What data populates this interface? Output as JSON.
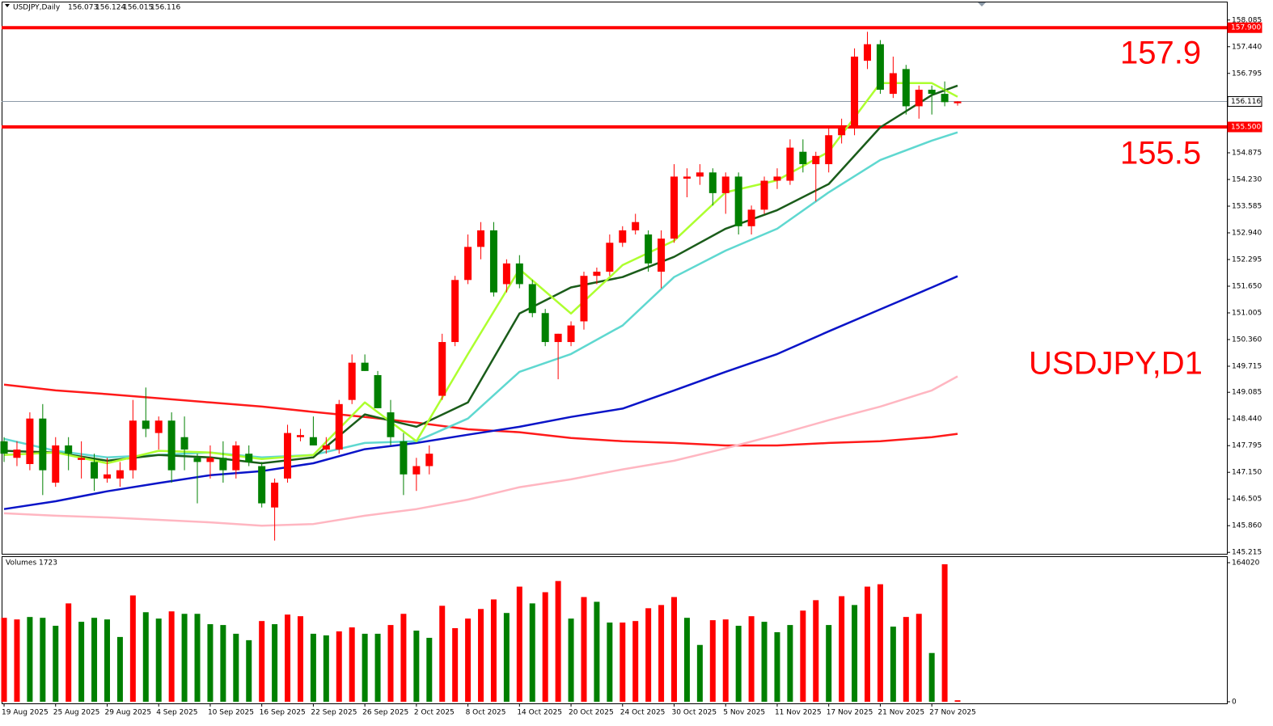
{
  "chart_data": {
    "type": "candlestick",
    "title": "USDJPY,Daily",
    "ohlc_header": [
      156.073,
      156.124,
      156.015,
      156.116
    ],
    "categories": [
      "19 Aug 2025",
      null,
      null,
      null,
      "25 Aug 2025",
      null,
      null,
      null,
      "29 Aug 2025",
      null,
      null,
      null,
      "4 Sep 2025",
      null,
      null,
      null,
      "10 Sep 2025",
      null,
      null,
      null,
      "16 Sep 2025",
      null,
      null,
      null,
      "22 Sep 2025",
      null,
      null,
      null,
      "26 Sep 2025",
      null,
      null,
      null,
      "2 Oct 2025",
      null,
      null,
      null,
      "8 Oct 2025",
      null,
      null,
      null,
      "14 Oct 2025",
      null,
      null,
      null,
      "20 Oct 2025",
      null,
      null,
      null,
      "24 Oct 2025",
      null,
      null,
      null,
      "30 Oct 2025",
      null,
      null,
      null,
      "5 Nov 2025",
      null,
      null,
      null,
      "11 Nov 2025",
      null,
      null,
      null,
      "17 Nov 2025",
      null,
      null,
      null,
      "21 Nov 2025",
      null,
      null,
      null,
      "27 Nov 2025",
      null,
      null
    ],
    "xlim": [
      -0.19,
      94.9
    ],
    "open": [
      147.9,
      147.5,
      147.35,
      148.45,
      146.9,
      147.8,
      147.45,
      147.4,
      147.0,
      147.0,
      147.2,
      148.4,
      148.1,
      148.4,
      148.0,
      147.5,
      147.4,
      147.5,
      147.2,
      147.6,
      147.3,
      146.3,
      147.0,
      148.0,
      148.0,
      147.7,
      147.7,
      148.9,
      149.8,
      149.5,
      148.6,
      147.9,
      147.1,
      147.3,
      149.0,
      150.3,
      151.8,
      152.6,
      153.0,
      151.7,
      152.2,
      151.7,
      151.0,
      150.3,
      150.3,
      150.8,
      151.9,
      152.0,
      152.7,
      153.0,
      152.9,
      152.0,
      152.8,
      154.25,
      154.3,
      154.4,
      153.9,
      154.3,
      153.1,
      153.5,
      154.2,
      154.2,
      154.9,
      154.6,
      154.6,
      155.3,
      155.5,
      157.1,
      157.5,
      156.3,
      156.9,
      156.0,
      156.4,
      156.3,
      156.073
    ],
    "high": [
      148.0,
      147.9,
      148.6,
      148.8,
      148.0,
      148.0,
      147.9,
      147.6,
      147.5,
      147.4,
      148.9,
      149.2,
      148.5,
      148.6,
      148.5,
      147.6,
      147.8,
      147.9,
      147.9,
      147.8,
      147.4,
      147.0,
      148.3,
      148.2,
      148.5,
      148.0,
      148.9,
      150.0,
      150.0,
      149.6,
      148.9,
      148.1,
      147.5,
      147.8,
      150.5,
      151.9,
      152.9,
      153.2,
      153.2,
      152.3,
      152.4,
      151.8,
      151.1,
      150.5,
      150.8,
      152.0,
      152.1,
      152.9,
      153.1,
      153.4,
      153.0,
      153.0,
      154.6,
      154.5,
      154.6,
      154.5,
      154.4,
      154.4,
      153.6,
      154.3,
      154.5,
      155.2,
      155.2,
      154.9,
      155.5,
      155.7,
      157.4,
      157.8,
      157.6,
      157.2,
      157.0,
      156.5,
      156.5,
      156.6,
      156.124
    ],
    "low": [
      147.4,
      147.3,
      147.2,
      146.6,
      146.8,
      147.2,
      147.0,
      146.7,
      146.9,
      146.8,
      147.0,
      148.0,
      147.7,
      146.9,
      147.2,
      146.4,
      147.0,
      146.9,
      147.0,
      147.3,
      146.3,
      145.5,
      146.9,
      147.9,
      147.8,
      147.6,
      147.6,
      148.8,
      149.6,
      148.7,
      147.8,
      146.6,
      146.7,
      147.1,
      148.9,
      150.2,
      151.7,
      152.3,
      151.4,
      151.5,
      151.6,
      150.9,
      150.2,
      149.4,
      150.2,
      150.6,
      151.7,
      151.9,
      152.6,
      152.9,
      152.0,
      151.6,
      152.7,
      153.8,
      154.1,
      153.6,
      153.4,
      152.9,
      152.9,
      153.4,
      154.0,
      154.1,
      154.4,
      153.7,
      154.4,
      155.1,
      155.3,
      156.9,
      156.3,
      156.2,
      155.8,
      155.7,
      155.8,
      156.0,
      156.015
    ],
    "close": [
      147.6,
      147.7,
      148.45,
      147.2,
      147.8,
      147.6,
      147.5,
      147.0,
      147.1,
      147.2,
      148.4,
      148.2,
      148.4,
      147.2,
      147.7,
      147.4,
      147.5,
      147.2,
      147.8,
      147.4,
      146.4,
      146.9,
      148.1,
      148.05,
      147.8,
      147.8,
      148.8,
      149.8,
      149.6,
      148.7,
      148.0,
      147.1,
      147.3,
      147.6,
      150.3,
      151.8,
      152.6,
      153.0,
      151.5,
      152.2,
      151.7,
      151.0,
      150.3,
      150.5,
      150.7,
      151.9,
      152.0,
      152.7,
      153.0,
      153.2,
      152.2,
      152.8,
      154.3,
      154.3,
      154.4,
      153.9,
      154.3,
      153.1,
      153.5,
      154.2,
      154.3,
      155.0,
      154.6,
      154.8,
      155.3,
      155.5,
      157.2,
      157.5,
      156.4,
      156.8,
      156.0,
      156.4,
      156.3,
      156.1,
      156.116
    ],
    "up_color": "#ff0000",
    "down_color": "#008000",
    "ylim": [
      145.18,
      158.53
    ],
    "yticks": [
      158.085,
      {
        "value": 157.44,
        "label": "157.440"
      },
      156.795,
      154.875,
      {
        "value": 154.23,
        "label": "154.230"
      },
      153.585,
      {
        "value": 152.94,
        "label": "152.940"
      },
      152.295,
      {
        "value": 151.65,
        "label": "151.650"
      },
      151.005,
      {
        "value": 150.36,
        "label": "150.360"
      },
      149.715,
      149.085,
      {
        "value": 148.44,
        "label": "148.440"
      },
      147.795,
      {
        "value": 147.15,
        "label": "147.150"
      },
      146.505,
      {
        "value": 145.86,
        "label": "145.860"
      },
      145.215
    ],
    "levels": [
      {
        "value": 157.9,
        "label": "157.900",
        "color": "#ff0000"
      },
      {
        "value": 155.5,
        "label": "155.500",
        "color": "#ff0000"
      },
      {
        "value": 156.116,
        "color": "#8c9aa8"
      }
    ],
    "overlays": [
      {
        "color": "#ff1a1a",
        "x": [
          0,
          4,
          8,
          12,
          16,
          20,
          24,
          28,
          32,
          36,
          40,
          44,
          48,
          52,
          56,
          60,
          64,
          68,
          72,
          74
        ],
        "values": [
          149.27,
          149.13,
          149.04,
          148.94,
          148.84,
          148.74,
          148.61,
          148.49,
          148.35,
          148.19,
          148.12,
          147.98,
          147.9,
          147.86,
          147.8,
          147.8,
          147.86,
          147.9,
          148.0,
          148.08
        ]
      },
      {
        "color": "#ffb6c1",
        "x": [
          0,
          4,
          8,
          12,
          16,
          20,
          24,
          28,
          32,
          36,
          40,
          44,
          48,
          52,
          56,
          60,
          64,
          68,
          72,
          74
        ],
        "values": [
          146.16,
          146.1,
          146.06,
          146.0,
          145.94,
          145.86,
          145.9,
          146.1,
          146.26,
          146.49,
          146.79,
          146.98,
          147.22,
          147.43,
          147.73,
          148.06,
          148.41,
          148.74,
          149.13,
          149.47
        ]
      },
      {
        "color": "#0a14c8",
        "x": [
          0,
          4,
          8,
          12,
          16,
          20,
          24,
          28,
          32,
          36,
          40,
          44,
          48,
          52,
          56,
          60,
          64,
          68,
          72,
          74
        ],
        "values": [
          146.26,
          146.45,
          146.69,
          146.89,
          147.08,
          147.18,
          147.37,
          147.71,
          147.86,
          148.06,
          148.25,
          148.49,
          148.69,
          149.13,
          149.58,
          150.01,
          150.56,
          151.09,
          151.62,
          151.89
        ]
      },
      {
        "color": "#5fd8d0",
        "x": [
          0,
          4,
          8,
          12,
          16,
          20,
          24,
          28,
          32,
          36,
          40,
          44,
          48,
          52,
          56,
          60,
          64,
          68,
          72,
          74
        ],
        "values": [
          147.96,
          147.67,
          147.51,
          147.57,
          147.63,
          147.51,
          147.57,
          147.86,
          147.9,
          148.45,
          149.58,
          150.01,
          150.7,
          151.87,
          152.51,
          153.04,
          153.92,
          154.7,
          155.17,
          155.37
        ]
      },
      {
        "color": "#1a5c1a",
        "x": [
          0,
          4,
          8,
          12,
          16,
          20,
          24,
          28,
          32,
          36,
          40,
          44,
          48,
          52,
          56,
          60,
          64,
          68,
          72,
          74
        ],
        "values": [
          147.67,
          147.63,
          147.43,
          147.57,
          147.51,
          147.37,
          147.51,
          148.55,
          148.25,
          148.84,
          150.99,
          151.62,
          151.87,
          152.36,
          153.04,
          153.49,
          154.12,
          155.49,
          156.27,
          156.5
        ]
      },
      {
        "color": "#adff2f",
        "x": [
          0,
          4,
          8,
          12,
          16,
          20,
          24,
          28,
          32,
          36,
          40,
          44,
          48,
          52,
          56,
          60,
          64,
          68,
          72,
          74
        ],
        "values": [
          147.57,
          147.63,
          147.37,
          147.67,
          147.63,
          147.47,
          147.57,
          148.84,
          147.9,
          150.01,
          152.06,
          150.99,
          152.16,
          152.75,
          153.92,
          154.21,
          154.9,
          156.56,
          156.56,
          156.23
        ]
      }
    ],
    "annotations": [
      "157.9",
      "155.5",
      "USDJPY,D1"
    ],
    "volume": {
      "title": "Volumes 1723",
      "values": [
        99000,
        97100,
        99960,
        99000,
        89600,
        116000,
        94300,
        99000,
        97100,
        76400,
        125400,
        105600,
        98100,
        106600,
        103700,
        103700,
        91500,
        90500,
        80200,
        72600,
        95200,
        91500,
        102800,
        100900,
        80200,
        78300,
        83000,
        87700,
        80200,
        80200,
        90500,
        103700,
        83900,
        75400,
        113200,
        86800,
        98100,
        109400,
        120700,
        104700,
        135800,
        116000,
        129200,
        142400,
        98100,
        123500,
        117900,
        93400,
        93400,
        95200,
        110300,
        114100,
        123500,
        99000,
        67000,
        96200,
        97100,
        89600,
        100900,
        94300,
        82000,
        90500,
        107500,
        119800,
        90500,
        124500,
        114100,
        135800,
        138600,
        88600,
        100000,
        103700,
        57500,
        162200,
        1723
      ],
      "colors": [
        "#ff0000",
        "#ff0000",
        "#008000",
        "#008000",
        "#008000",
        "#ff0000",
        "#008000",
        "#008000",
        "#008000",
        "#008000",
        "#ff0000",
        "#008000",
        "#008000",
        "#ff0000",
        "#008000",
        "#008000",
        "#008000",
        "#008000",
        "#008000",
        "#008000",
        "#ff0000",
        "#008000",
        "#ff0000",
        "#ff0000",
        "#008000",
        "#008000",
        "#ff0000",
        "#ff0000",
        "#008000",
        "#008000",
        "#ff0000",
        "#ff0000",
        "#008000",
        "#008000",
        "#ff0000",
        "#ff0000",
        "#ff0000",
        "#ff0000",
        "#ff0000",
        "#008000",
        "#ff0000",
        "#008000",
        "#ff0000",
        "#ff0000",
        "#008000",
        "#ff0000",
        "#008000",
        "#008000",
        "#ff0000",
        "#ff0000",
        "#ff0000",
        "#ff0000",
        "#ff0000",
        "#008000",
        "#008000",
        "#ff0000",
        "#ff0000",
        "#008000",
        "#ff0000",
        "#008000",
        "#008000",
        "#008000",
        "#ff0000",
        "#ff0000",
        "#008000",
        "#ff0000",
        "#008000",
        "#ff0000",
        "#ff0000",
        "#008000",
        "#ff0000",
        "#ff0000",
        "#008000",
        "#ff0000",
        "#ff0000"
      ],
      "ylim": [
        0,
        164020
      ],
      "yticks": [
        0,
        164020
      ]
    },
    "grid": false
  }
}
